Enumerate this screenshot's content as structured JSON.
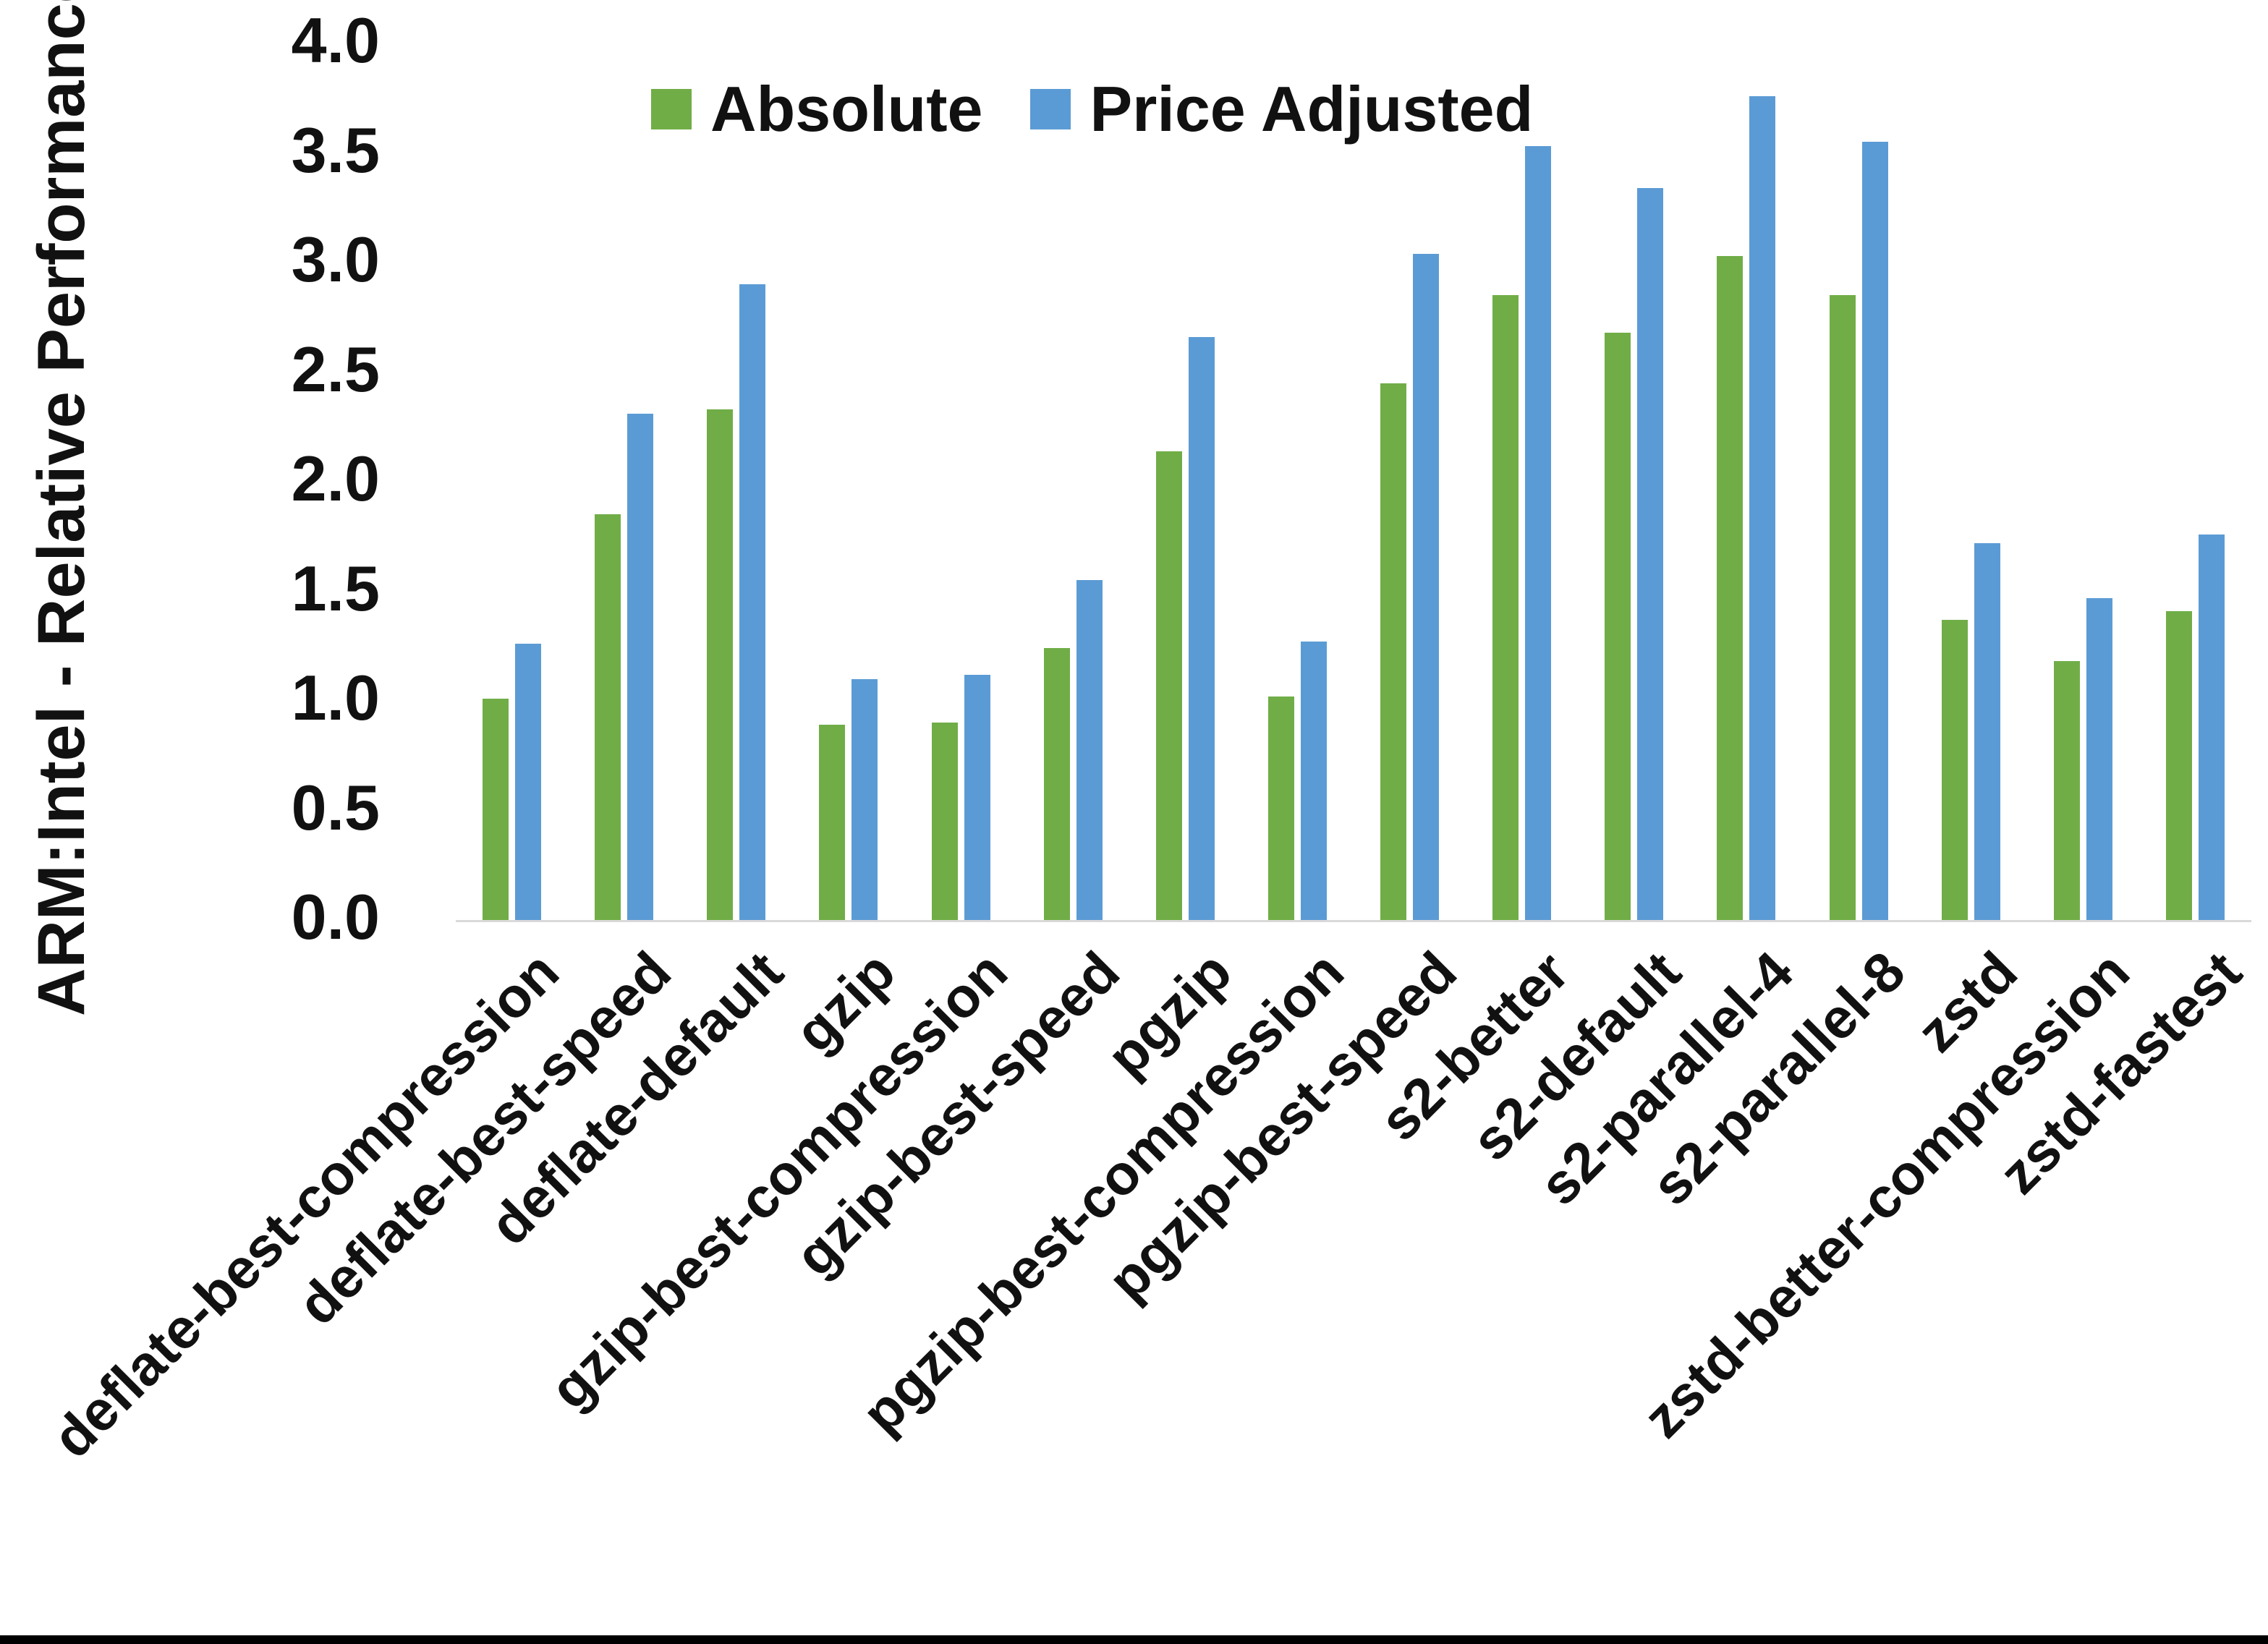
{
  "chart_data": {
    "type": "bar",
    "title": "",
    "xlabel": "",
    "ylabel": "ARM:Intel - Relative Performance",
    "ylim": [
      0.0,
      4.0
    ],
    "y_tick_step": 0.5,
    "grid": false,
    "legend_position": "top-center",
    "categories": [
      "deflate-best-compression",
      "deflate-best-speed",
      "deflate-default",
      "gzip",
      "gzip-best-compression",
      "gzip-best-speed",
      "pgzip",
      "pgzip-best-compression",
      "pgzip-best-speed",
      "s2-better",
      "s2-default",
      "s2-parallel-4",
      "s2-parallel-8",
      "zstd",
      "zstd-better-compression",
      "zstd-fastest"
    ],
    "series": [
      {
        "name": "Absolute",
        "color": "#70AD47",
        "values": [
          1.01,
          1.85,
          2.33,
          0.89,
          0.9,
          1.24,
          2.14,
          1.02,
          2.45,
          2.85,
          2.68,
          3.03,
          2.85,
          1.37,
          1.18,
          1.41
        ]
      },
      {
        "name": "Price Adjusted",
        "color": "#5B9BD5",
        "values": [
          1.26,
          2.31,
          2.9,
          1.1,
          1.12,
          1.55,
          2.66,
          1.27,
          3.04,
          3.53,
          3.34,
          3.76,
          3.55,
          1.72,
          1.47,
          1.76
        ]
      }
    ],
    "y_tick_labels": [
      "4.0",
      "3.5",
      "3.0",
      "2.5",
      "2.0",
      "1.5",
      "1.0",
      "0.5",
      "0.0"
    ]
  },
  "colors": {
    "axis_line": "#D9D9D9",
    "text": "#111111",
    "bottom_border": "#000000",
    "background": "#FFFFFF"
  }
}
